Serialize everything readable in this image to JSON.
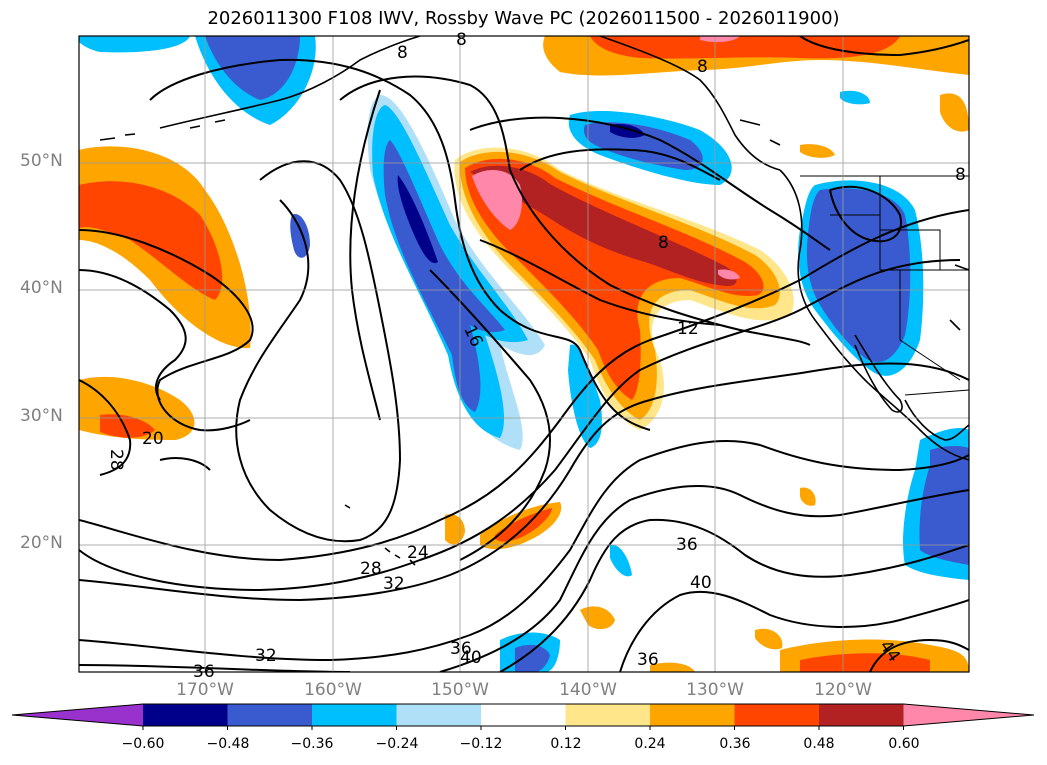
{
  "title": "2026011300 F108 IWV, Rossby Wave PC (2026011500 - 2026011900)",
  "lat_labels": [
    "50°N",
    "40°N",
    "30°N",
    "20°N"
  ],
  "lon_labels": [
    "170°W",
    "160°W",
    "150°W",
    "140°W",
    "130°W",
    "120°W"
  ],
  "colorbar": {
    "tick_labels": [
      "−0.60",
      "−0.48",
      "−0.36",
      "−0.24",
      "−0.12",
      "0.12",
      "0.24",
      "0.36",
      "0.48",
      "0.60"
    ],
    "colors": [
      "#9932cc",
      "#00008b",
      "#3a5bcf",
      "#00bfff",
      "#b0e0f8",
      "#ffffff",
      "#ffe68a",
      "#ffa500",
      "#ff4500",
      "#b22222",
      "#ff88aa"
    ]
  },
  "contour_labels": [
    "8",
    "8",
    "8",
    "8",
    "8",
    "16",
    "12",
    "20",
    "28",
    "24",
    "28",
    "32",
    "36",
    "40",
    "32",
    "36",
    "40",
    "36",
    "44",
    "36"
  ],
  "legend": {
    "shading": "Rossby Wave PC",
    "contours": "IWV"
  }
}
